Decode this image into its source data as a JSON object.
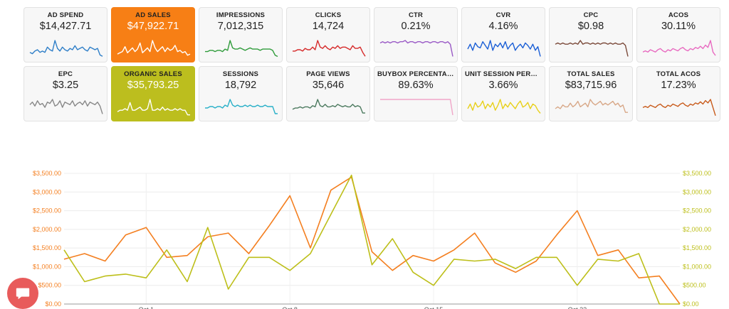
{
  "kpis": [
    {
      "id": "ad-spend",
      "label": "AD SPEND",
      "value": "$14,427.71",
      "bg": "#f7f7f7",
      "text": "#222222",
      "spark_color": "#2f7fc8",
      "spark": [
        5,
        4,
        6,
        7,
        5,
        6,
        5,
        9,
        7,
        6,
        14,
        8,
        6,
        9,
        7,
        6,
        8,
        7,
        10,
        7,
        8,
        9,
        7,
        6,
        9,
        8,
        7,
        8,
        3,
        2
      ]
    },
    {
      "id": "ad-sales",
      "label": "AD SALES",
      "value": "$47,922.71",
      "bg": "#f77f15",
      "text": "#ffffff",
      "spark_color": "#ffffff",
      "spark": [
        4,
        5,
        6,
        10,
        5,
        7,
        9,
        6,
        8,
        13,
        5,
        7,
        9,
        6,
        15,
        9,
        6,
        8,
        10,
        6,
        9,
        7,
        8,
        11,
        6,
        7,
        5,
        6,
        3,
        4
      ]
    },
    {
      "id": "impressions",
      "label": "IMPRESSIONS",
      "value": "7,012,315",
      "bg": "#f7f7f7",
      "text": "#222222",
      "spark_color": "#2e9b3a",
      "spark": [
        6,
        6,
        7,
        7,
        6,
        7,
        7,
        6,
        8,
        7,
        15,
        9,
        8,
        8,
        9,
        8,
        7,
        8,
        9,
        8,
        8,
        8,
        7,
        8,
        8,
        8,
        8,
        7,
        3,
        2
      ]
    },
    {
      "id": "clicks",
      "label": "CLICKS",
      "value": "14,724",
      "bg": "#f7f7f7",
      "text": "#222222",
      "spark_color": "#d62a2a",
      "spark": [
        6,
        6,
        7,
        7,
        6,
        8,
        7,
        7,
        9,
        7,
        14,
        9,
        8,
        10,
        8,
        7,
        9,
        8,
        10,
        8,
        9,
        9,
        8,
        7,
        10,
        8,
        8,
        9,
        5,
        2
      ]
    },
    {
      "id": "ctr",
      "label": "CTR",
      "value": "0.21%",
      "bg": "#f7f7f7",
      "text": "#222222",
      "spark_color": "#9a5ac6",
      "spark": [
        13,
        14,
        13,
        14,
        13,
        14,
        14,
        13,
        14,
        14,
        15,
        13,
        14,
        14,
        13,
        14,
        14,
        13,
        14,
        14,
        13,
        14,
        14,
        13,
        14,
        14,
        13,
        14,
        12,
        2
      ]
    },
    {
      "id": "cvr",
      "label": "CVR",
      "value": "4.16%",
      "bg": "#f7f7f7",
      "text": "#222222",
      "spark_color": "#1b5fd6",
      "spark": [
        8,
        12,
        7,
        13,
        10,
        9,
        14,
        11,
        8,
        15,
        7,
        12,
        10,
        13,
        9,
        14,
        8,
        11,
        13,
        7,
        10,
        12,
        9,
        13,
        11,
        8,
        12,
        7,
        10,
        2
      ]
    },
    {
      "id": "cpc",
      "label": "CPC",
      "value": "$0.98",
      "bg": "#f7f7f7",
      "text": "#222222",
      "spark_color": "#7b4a3a",
      "spark": [
        12,
        13,
        12,
        13,
        12,
        12,
        13,
        12,
        13,
        12,
        15,
        12,
        13,
        13,
        12,
        13,
        12,
        13,
        12,
        13,
        13,
        12,
        13,
        12,
        13,
        12,
        12,
        13,
        11,
        2
      ]
    },
    {
      "id": "acos",
      "label": "ACOS",
      "value": "30.11%",
      "bg": "#f7f7f7",
      "text": "#222222",
      "spark_color": "#e86ac0",
      "spark": [
        6,
        7,
        6,
        8,
        7,
        6,
        8,
        9,
        7,
        6,
        8,
        7,
        9,
        8,
        7,
        9,
        10,
        8,
        7,
        9,
        8,
        10,
        9,
        11,
        9,
        12,
        10,
        16,
        6,
        3
      ]
    },
    {
      "id": "epc",
      "label": "EPC",
      "value": "$3.25",
      "bg": "#f7f7f7",
      "text": "#222222",
      "spark_color": "#888888",
      "spark": [
        10,
        12,
        9,
        13,
        10,
        11,
        8,
        12,
        11,
        14,
        9,
        10,
        13,
        8,
        12,
        11,
        10,
        13,
        9,
        11,
        12,
        10,
        13,
        9,
        12,
        11,
        10,
        12,
        9,
        3
      ]
    },
    {
      "id": "organic-sales",
      "label": "ORGANIC SALES",
      "value": "$35,793.25",
      "bg": "#bcbe1e",
      "text": "#ffffff",
      "spark_color": "#ffffff",
      "spark": [
        4,
        5,
        5,
        6,
        5,
        10,
        5,
        5,
        6,
        7,
        5,
        5,
        6,
        12,
        5,
        5,
        6,
        5,
        7,
        5,
        6,
        5,
        5,
        6,
        5,
        6,
        5,
        5,
        2,
        2
      ]
    },
    {
      "id": "sessions",
      "label": "SESSIONS",
      "value": "18,792",
      "bg": "#f7f7f7",
      "text": "#222222",
      "spark_color": "#2ab0c8",
      "spark": [
        7,
        7,
        8,
        8,
        7,
        8,
        8,
        7,
        9,
        8,
        13,
        9,
        8,
        9,
        8,
        8,
        9,
        8,
        9,
        8,
        8,
        9,
        8,
        8,
        9,
        8,
        8,
        8,
        3,
        3
      ]
    },
    {
      "id": "page-views",
      "label": "PAGE VIEWS",
      "value": "35,646",
      "bg": "#f7f7f7",
      "text": "#222222",
      "spark_color": "#4c7a5f",
      "spark": [
        7,
        8,
        8,
        9,
        8,
        9,
        9,
        8,
        10,
        9,
        15,
        10,
        9,
        11,
        9,
        9,
        10,
        9,
        11,
        10,
        9,
        10,
        9,
        9,
        11,
        9,
        10,
        9,
        4,
        4
      ]
    },
    {
      "id": "buybox-percentage",
      "label": "BUYBOX PERCENTAGE",
      "value": "89.63%",
      "bg": "#f7f7f7",
      "text": "#222222",
      "spark_color": "#f0a6c8",
      "spark": [
        13,
        13,
        13,
        13,
        13,
        13,
        13,
        13,
        13,
        13,
        13,
        13,
        13,
        13,
        13,
        13,
        13,
        13,
        13,
        13,
        13,
        13,
        13,
        13,
        13,
        13,
        13,
        13,
        13,
        2
      ]
    },
    {
      "id": "unit-session-percentage",
      "label": "UNIT SESSION PERCENTAGE",
      "value": "3.66%",
      "bg": "#f7f7f7",
      "text": "#222222",
      "spark_color": "#e8d01a",
      "spark": [
        6,
        9,
        5,
        10,
        7,
        8,
        11,
        6,
        9,
        7,
        10,
        5,
        8,
        12,
        6,
        9,
        7,
        10,
        8,
        6,
        9,
        11,
        7,
        8,
        10,
        6,
        9,
        8,
        5,
        3
      ]
    },
    {
      "id": "total-sales",
      "label": "TOTAL SALES",
      "value": "$83,715.96",
      "bg": "#f7f7f7",
      "text": "#222222",
      "spark_color": "#d8a888",
      "spark": [
        5,
        6,
        5,
        7,
        6,
        6,
        8,
        6,
        7,
        9,
        6,
        7,
        8,
        6,
        10,
        8,
        7,
        8,
        9,
        7,
        8,
        7,
        8,
        9,
        7,
        8,
        6,
        7,
        3,
        3
      ]
    },
    {
      "id": "total-acos",
      "label": "TOTAL ACOS",
      "value": "17.23%",
      "bg": "#f7f7f7",
      "text": "#222222",
      "spark_color": "#c85a1a",
      "spark": [
        9,
        10,
        9,
        11,
        10,
        9,
        11,
        12,
        10,
        9,
        11,
        10,
        12,
        11,
        10,
        12,
        13,
        11,
        10,
        12,
        11,
        13,
        12,
        14,
        12,
        15,
        13,
        16,
        9,
        2
      ]
    }
  ],
  "chart": {
    "chart_data": {
      "type": "line",
      "x": [
        "Sep 27",
        "Sep 28",
        "Sep 29",
        "Sep 30",
        "Oct 1",
        "Oct 2",
        "Oct 3",
        "Oct 4",
        "Oct 5",
        "Oct 6",
        "Oct 7",
        "Oct 8",
        "Oct 9",
        "Oct 10",
        "Oct 11",
        "Oct 12",
        "Oct 13",
        "Oct 14",
        "Oct 15",
        "Oct 16",
        "Oct 17",
        "Oct 18",
        "Oct 19",
        "Oct 20",
        "Oct 21",
        "Oct 22",
        "Oct 23",
        "Oct 24",
        "Oct 25",
        "Oct 26",
        "Oct 27"
      ],
      "x_tick_labels": [
        "Oct 1",
        "Oct 8",
        "Oct 15",
        "Oct 22"
      ],
      "series": [
        {
          "axis": "left",
          "color": "#f47f20",
          "values": [
            1200,
            1350,
            1150,
            1850,
            2050,
            1250,
            1300,
            1800,
            1900,
            1350,
            2100,
            2900,
            1500,
            3050,
            3400,
            1400,
            900,
            1300,
            1150,
            1450,
            1900,
            1100,
            850,
            1150,
            1850,
            2500,
            1300,
            1450,
            700,
            750,
            0
          ]
        },
        {
          "axis": "right",
          "color": "#bdbf1a",
          "values": [
            1450,
            600,
            750,
            800,
            700,
            1450,
            600,
            2050,
            400,
            1250,
            1250,
            900,
            1350,
            2400,
            3450,
            1050,
            1750,
            850,
            500,
            1200,
            1150,
            1200,
            950,
            1250,
            1250,
            500,
            1200,
            1150,
            1350,
            0,
            0
          ]
        }
      ],
      "ylim_left": [
        0,
        3500
      ],
      "ylim_right": [
        0,
        3500
      ],
      "y_ticks_left": [
        "$0.00",
        "$500.00",
        "$1,000.00",
        "$1,500.00",
        "$2,000.00",
        "$2,500.00",
        "$3,000.00",
        "$3,500.00"
      ],
      "y_ticks_right": [
        "$0.00",
        "$500.00",
        "$1,000.00",
        "$1,500.00",
        "$2,000.00",
        "$2,500.00",
        "$3,000.00",
        "$3,500.00"
      ],
      "grid": true
    }
  },
  "chat": {
    "icon": "chat-bubble-icon",
    "color": "#e85b5b"
  }
}
